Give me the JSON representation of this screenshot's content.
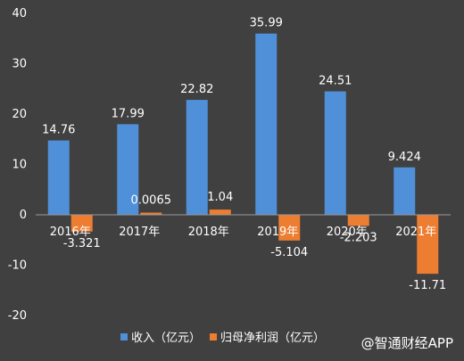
{
  "chart_data": {
    "type": "bar",
    "categories": [
      "2016年",
      "2017年",
      "2018年",
      "2019年",
      "2020年",
      "2021年"
    ],
    "series": [
      {
        "name": "收入（亿元）",
        "color": "#4f90d9",
        "values": [
          14.76,
          17.99,
          22.82,
          35.99,
          24.51,
          9.424
        ],
        "labels": [
          "14.76",
          "17.99",
          "22.82",
          "35.99",
          "24.51",
          "9.424"
        ]
      },
      {
        "name": "归母净利润（亿元）",
        "color": "#ed7d31",
        "values": [
          -3.321,
          0.0065,
          1.04,
          -5.104,
          -2.203,
          -11.71
        ],
        "labels": [
          "-3.321",
          "0.0065",
          "1.04",
          "-5.104",
          "-2.203",
          "-11.71"
        ]
      }
    ],
    "title": "",
    "xlabel": "",
    "ylabel": "",
    "ylim": [
      -20,
      40
    ],
    "yticks": [
      -20,
      -10,
      0,
      10,
      20,
      30,
      40
    ],
    "grid": false,
    "legend_position": "bottom"
  },
  "watermark": "@智通财经APP"
}
